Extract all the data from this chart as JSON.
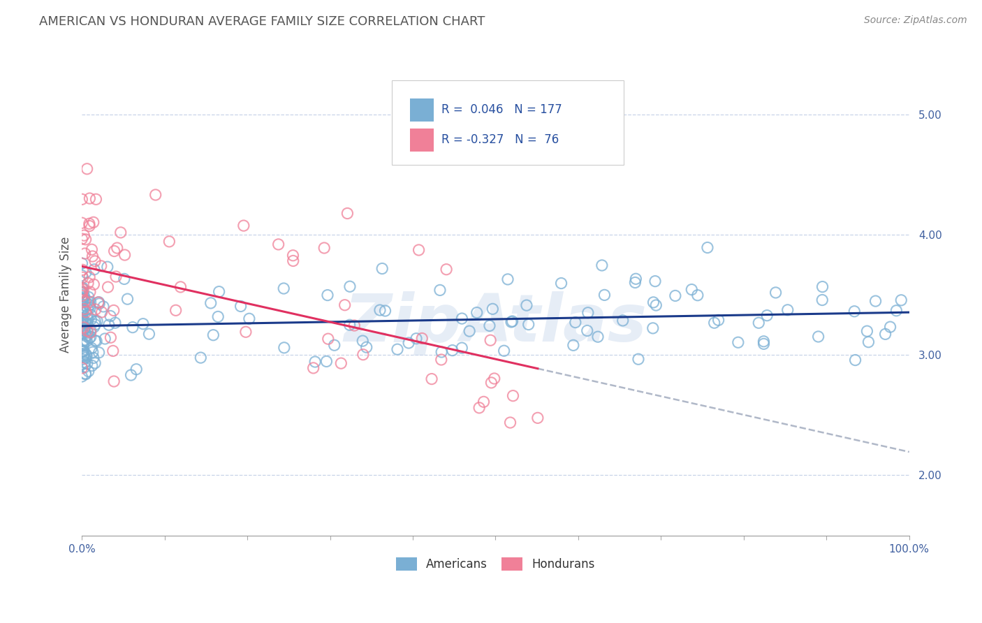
{
  "title": "AMERICAN VS HONDURAN AVERAGE FAMILY SIZE CORRELATION CHART",
  "ylabel": "Average Family Size",
  "source": "Source: ZipAtlas.com",
  "watermark": "ZipAtlas",
  "r_american": 0.046,
  "n_american": 177,
  "r_honduran": -0.327,
  "n_honduran": 76,
  "yticks": [
    2.0,
    3.0,
    4.0,
    5.0
  ],
  "xlim": [
    0.0,
    1.0
  ],
  "ylim": [
    1.5,
    5.5
  ],
  "american_color": "#7aafd4",
  "american_edge_color": "#7aafd4",
  "american_line_color": "#1a3a8a",
  "honduran_color": "#f08098",
  "honduran_edge_color": "#f08098",
  "honduran_line_color": "#e03060",
  "honduran_dash_color": "#b0b8c8",
  "title_color": "#555555",
  "background_color": "#ffffff",
  "grid_color": "#c8d4e8",
  "tick_color": "#4060a0"
}
